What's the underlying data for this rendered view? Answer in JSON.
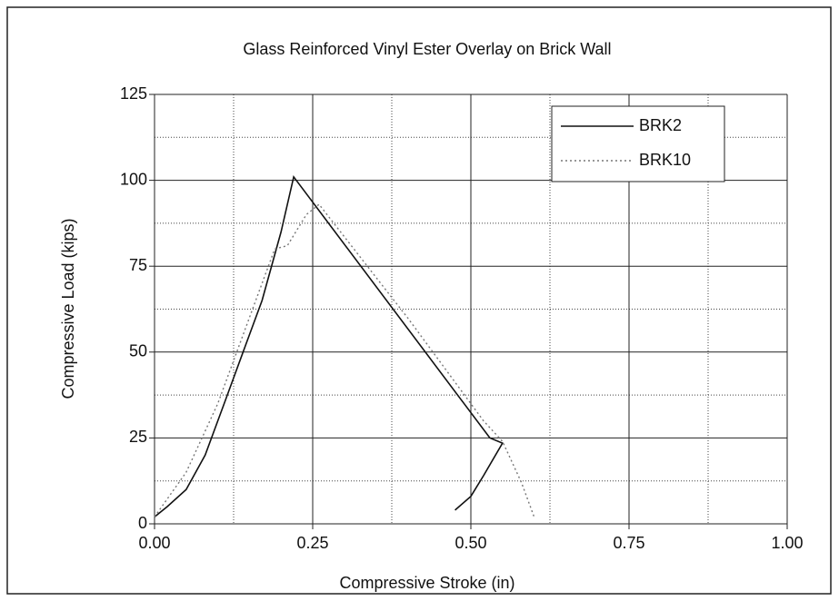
{
  "chart_data": {
    "type": "line",
    "title": "Glass Reinforced Vinyl Ester Overlay on Brick Wall",
    "x_label": "Compressive Stroke (in)",
    "y_label": "Compressive Load (kips)",
    "xlim": [
      0,
      1
    ],
    "ylim": [
      0,
      125
    ],
    "xticks": [
      {
        "value": 0,
        "label": "0.00"
      },
      0.25,
      {
        "value": 0.5,
        "label": "0.50"
      },
      0.75,
      {
        "value": 1,
        "label": "1.00"
      }
    ],
    "yticks": [
      0,
      25,
      50,
      75,
      100,
      125
    ],
    "grid": true,
    "legend": "upper right",
    "series": [
      {
        "name": "BRK2",
        "color": "#111111",
        "line_style": "solid",
        "x": [
          0,
          0.02,
          0.05,
          0.08,
          0.11,
          0.14,
          0.17,
          0.2,
          0.22,
          0.53,
          0.55,
          0.52,
          0.5,
          0.475
        ],
        "values": [
          2,
          5,
          10,
          20,
          35,
          50,
          65,
          85,
          101,
          25,
          23.5,
          14,
          8,
          4
        ]
      },
      {
        "name": "BRK10",
        "color": "#777777",
        "line_style": "dotted",
        "x": [
          0,
          0.05,
          0.1,
          0.14,
          0.17,
          0.19,
          0.21,
          0.24,
          0.26,
          0.4,
          0.52,
          0.55,
          0.58,
          0.6
        ],
        "values": [
          2,
          15,
          35,
          55,
          70,
          80,
          81,
          90,
          93,
          60,
          30,
          24,
          12,
          2
        ]
      }
    ]
  }
}
